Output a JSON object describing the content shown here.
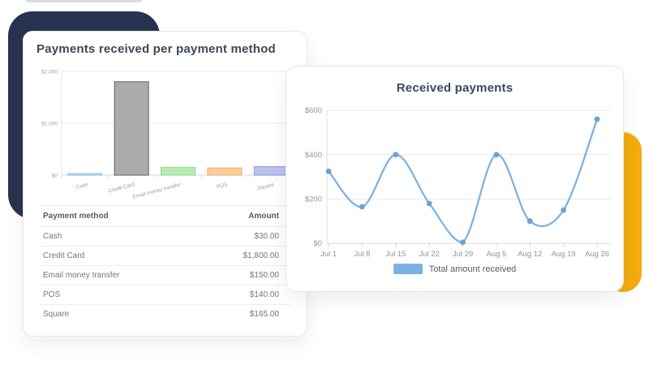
{
  "page": {
    "background": "#ffffff"
  },
  "decor": {
    "navy_color": "#28344f",
    "yellow_color": "#f4ac0e",
    "sliver_color": "#dcdcdc"
  },
  "left_card": {
    "title": "Payments received per payment method",
    "table": {
      "headers": [
        "Payment method",
        "Amount"
      ],
      "rows": [
        {
          "method": "Cash",
          "amount": "$30.00"
        },
        {
          "method": "Credit Card",
          "amount": "$1,800.00"
        },
        {
          "method": "Email money transfer",
          "amount": "$150.00"
        },
        {
          "method": "POS",
          "amount": "$140.00"
        },
        {
          "method": "Square",
          "amount": "$165.00"
        }
      ]
    }
  },
  "right_card": {
    "title": "Received payments",
    "legend_label": "Total amount received"
  },
  "chart_data": [
    {
      "type": "bar",
      "title": "Payments received per payment method",
      "categories": [
        "Cash",
        "Credit Card",
        "Email money transfer",
        "POS",
        "Square"
      ],
      "values": [
        30,
        1800,
        150,
        140,
        165
      ],
      "ylim": [
        0,
        2000
      ],
      "yticks": [
        0,
        1000,
        2000
      ],
      "ytick_labels": [
        "$0",
        "$1,000",
        "$2,000"
      ],
      "grid": true,
      "xlabel_rotation": -15,
      "bar_fills": [
        "#b9dcf5",
        "#ababab",
        "#b9ecb4",
        "#fbce9d",
        "#bcc2ee"
      ],
      "bar_strokes": [
        "#8cc1ea",
        "#606060",
        "#8dd88d",
        "#f1aa65",
        "#8f98e2"
      ]
    },
    {
      "type": "line",
      "title": "Received payments",
      "x": [
        "Jul 1",
        "Jul 8",
        "Jul 15",
        "Jul 22",
        "Jul 29",
        "Aug 5",
        "Aug 12",
        "Aug 19",
        "Aug 26"
      ],
      "series": [
        {
          "name": "Total amount received",
          "values": [
            325,
            165,
            400,
            180,
            5,
            400,
            100,
            150,
            560
          ],
          "color": "#7cb1e2",
          "point_color": "#68a3d9"
        }
      ],
      "ylim": [
        0,
        600
      ],
      "yticks": [
        0,
        200,
        400,
        600
      ],
      "ytick_labels": [
        "$0",
        "$200",
        "$400",
        "$600"
      ],
      "grid": true,
      "legend_position": "bottom"
    }
  ]
}
